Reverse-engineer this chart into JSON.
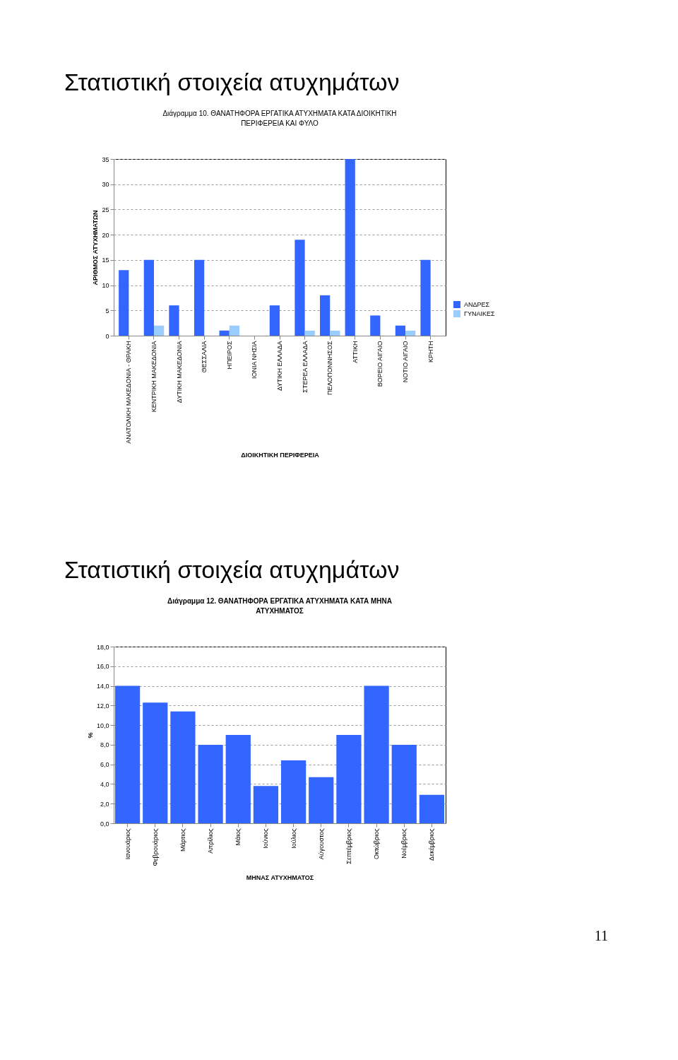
{
  "chart_data": [
    {
      "type": "bar",
      "title": "Διάγραμμα 10. ΘΑΝΑΤΗΦΟΡΑ ΕΡΓΑΤΙΚΑ ΑΤΥΧΗΜΑΤΑ ΚΑΤΑ ΔΙΟΙΚΗΤΙΚΗ ΠΕΡΙΦΕΡΕΙΑ ΚΑΙ ΦΥΛΟ",
      "xlabel": "ΔΙΟΙΚΗΤΙΚΗ ΠΕΡΙΦΕΡΕΙΑ",
      "ylabel": "ΑΡΙΘΜΟΣ ΑΤΥΧΗΜΑΤΩΝ",
      "annotations": [
        "Στατιστική στοιχεία ατυχημάτων"
      ],
      "categories": [
        "ΑΝΑΤΟΛΙΚΗ ΜΑΚΕΔΟΝΙΑ - ΘΡΑΚΗ",
        "ΚΕΝΤΡΙΚΗ ΜΑΚΕΔΟΝΙΑ",
        "ΔΥΤΙΚΗ ΜΑΚΕΔΟΝΙΑ",
        "ΘΕΣΣΑΛΙΑ",
        "ΗΠΕΙΡΟΣ",
        "ΙΟΝΙΑ ΝΗΣΙΑ",
        "ΔΥΤΙΚΗ ΕΛΛΑΔΑ",
        "ΣΤΕΡΕΑ ΕΛΛΑΔΑ",
        "ΠΕΛΟΠΟΝΝΗΣΟΣ",
        "ΑΤΤΙΚΗ",
        "ΒΟΡΕΙΟ ΑΙΓΑΙΟ",
        "ΝΟΤΙΟ ΑΙΓΑΙΟ",
        "ΚΡΗΤΗ"
      ],
      "series": [
        {
          "name": "ΑΝΔΡΕΣ",
          "color": "#3366ff",
          "values": [
            13,
            15,
            6,
            15,
            1,
            0,
            6,
            19,
            8,
            35,
            4,
            2,
            15
          ]
        },
        {
          "name": "ΓΥΝΑΙΚΕΣ",
          "color": "#99ccff",
          "values": [
            0,
            2,
            0,
            0,
            2,
            0,
            0,
            1,
            1,
            0,
            0,
            1,
            0
          ]
        }
      ],
      "ylim": [
        0,
        35
      ],
      "yticks": [
        0,
        5,
        10,
        15,
        20,
        25,
        30,
        35
      ],
      "grid": "y",
      "legend": "right"
    },
    {
      "type": "bar",
      "title": "Διάγραμμα 12. ΘΑΝΑΤΗΦΟΡΑ ΕΡΓΑΤΙΚΑ ΑΤΥΧΗΜΑΤΑ ΚΑΤΑ ΜΗΝΑ ΑΤΥΧΗΜΑΤΟΣ",
      "xlabel": "ΜΗΝΑΣ ΑΤΥΧΗΜΑΤΟΣ",
      "ylabel": "%",
      "annotations": [
        "Στατιστική στοιχεία ατυχημάτων",
        "11"
      ],
      "categories": [
        "Ιανουάριος",
        "Φεβρουάριος",
        "Μάρτιος",
        "Απρίλιος",
        "Μάιος",
        "Ιούνιος",
        "Ιούλιος",
        "Αύγουστος",
        "Σεπτέμβριος",
        "Οκτώβριος",
        "Νοέμβριος",
        "Δεκέμβριος"
      ],
      "series": [
        {
          "color": "#3366ff",
          "values": [
            14.0,
            12.3,
            11.4,
            8.0,
            9.0,
            3.8,
            6.4,
            4.7,
            9.0,
            14.0,
            8.0,
            2.9
          ]
        }
      ],
      "ylim": [
        0,
        18
      ],
      "yticks": [
        {
          "value": 0,
          "label": "0,0"
        },
        {
          "value": 2,
          "label": "2,0"
        },
        {
          "value": 4,
          "label": "4,0"
        },
        {
          "value": 6,
          "label": "6,0"
        },
        {
          "value": 8,
          "label": "8,0"
        },
        {
          "value": 10,
          "label": "10,0"
        },
        {
          "value": 12,
          "label": "12,0"
        },
        {
          "value": 14,
          "label": "14,0"
        },
        {
          "value": 16,
          "label": "16,0"
        },
        {
          "value": 18,
          "label": "18,0"
        }
      ],
      "grid": "y",
      "legend": false
    }
  ]
}
